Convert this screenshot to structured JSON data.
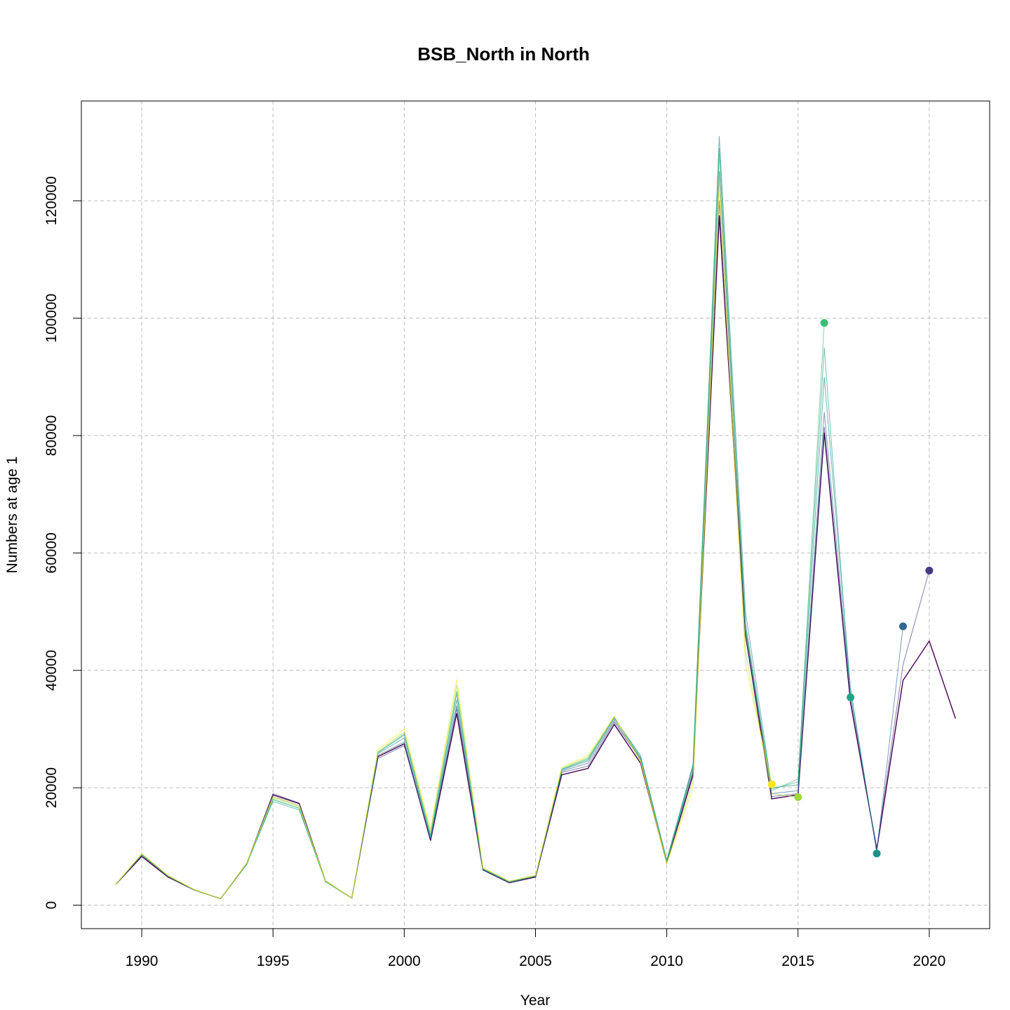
{
  "chart_data": {
    "type": "line",
    "title": "BSB_North in North",
    "xlabel": "Year",
    "ylabel": "Numbers at age 1",
    "xlim": [
      1987.7,
      2022.3
    ],
    "ylim": [
      -4000,
      137000
    ],
    "x_ticks": [
      1990,
      1995,
      2000,
      2005,
      2010,
      2015,
      2020
    ],
    "y_ticks": [
      0,
      20000,
      40000,
      60000,
      80000,
      100000,
      120000
    ],
    "grid": true,
    "legend": "none",
    "series": [
      {
        "color": "#440154",
        "x": [
          1989,
          1990,
          1991,
          1992,
          1993,
          1994,
          1995,
          1996,
          1997,
          1998,
          1999,
          2000,
          2001,
          2002,
          2003,
          2004,
          2005,
          2006,
          2007,
          2008,
          2009,
          2010,
          2011,
          2012,
          2013,
          2014,
          2015,
          2016,
          2017,
          2018,
          2019,
          2020,
          2021
        ],
        "values": [
          3500,
          8300,
          4800,
          2600,
          1100,
          7000,
          18800,
          17300,
          4100,
          1200,
          25300,
          27500,
          11000,
          32700,
          6000,
          3800,
          4800,
          22200,
          23300,
          30800,
          24200,
          7200,
          22200,
          117500,
          46000,
          18100,
          18800,
          80500,
          34500,
          9500,
          38300,
          45000,
          31800
        ],
        "endpoint": null
      },
      {
        "color": "#443A83",
        "x": [
          1989,
          1990,
          1991,
          1992,
          1993,
          1994,
          1995,
          1996,
          1997,
          1998,
          1999,
          2000,
          2001,
          2002,
          2003,
          2004,
          2005,
          2006,
          2007,
          2008,
          2009,
          2010,
          2011,
          2012,
          2013,
          2014,
          2015,
          2016,
          2017,
          2018,
          2019,
          2020
        ],
        "values": [
          3500,
          8500,
          4900,
          2600,
          1100,
          7200,
          19000,
          17400,
          4100,
          1200,
          25000,
          27200,
          11200,
          33500,
          6000,
          3800,
          4900,
          22600,
          23700,
          31200,
          24800,
          7300,
          22700,
          120000,
          47000,
          18500,
          19000,
          81500,
          35000,
          9700,
          41000,
          57000
        ],
        "endpoint": 57000
      },
      {
        "color": "#31688E",
        "x": [
          1989,
          1990,
          1991,
          1992,
          1993,
          1994,
          1995,
          1996,
          1997,
          1998,
          1999,
          2000,
          2001,
          2002,
          2003,
          2004,
          2005,
          2006,
          2007,
          2008,
          2009,
          2010,
          2011,
          2012,
          2013,
          2014,
          2015,
          2016,
          2017,
          2018,
          2019
        ],
        "values": [
          3500,
          8600,
          4900,
          2600,
          1100,
          7100,
          18500,
          17000,
          4100,
          1200,
          25500,
          27800,
          11300,
          34000,
          6100,
          3900,
          4900,
          22800,
          24200,
          31500,
          25000,
          7500,
          23500,
          125000,
          48000,
          19000,
          19500,
          84000,
          36000,
          9200,
          47500
        ],
        "endpoint": 47500
      },
      {
        "color": "#21908C",
        "x": [
          1989,
          1990,
          1991,
          1992,
          1993,
          1994,
          1995,
          1996,
          1997,
          1998,
          1999,
          2000,
          2001,
          2002,
          2003,
          2004,
          2005,
          2006,
          2007,
          2008,
          2009,
          2010,
          2011,
          2012,
          2013,
          2014,
          2015,
          2016,
          2017,
          2018
        ],
        "values": [
          3500,
          8700,
          5000,
          2600,
          1100,
          7000,
          18000,
          16500,
          4000,
          1200,
          25800,
          28500,
          11500,
          35000,
          6100,
          4000,
          5000,
          23000,
          24600,
          31800,
          25500,
          7700,
          24000,
          131000,
          50000,
          20000,
          20500,
          90000,
          37000,
          8800
        ],
        "endpoint": 8800
      },
      {
        "color": "#20A486",
        "x": [
          1989,
          1990,
          1991,
          1992,
          1993,
          1994,
          1995,
          1996,
          1997,
          1998,
          1999,
          2000,
          2001,
          2002,
          2003,
          2004,
          2005,
          2006,
          2007,
          2008,
          2009,
          2010,
          2011,
          2012,
          2013,
          2014,
          2015,
          2016,
          2017
        ],
        "values": [
          3500,
          8700,
          5000,
          2600,
          1100,
          7000,
          17700,
          16200,
          4000,
          1200,
          26000,
          29000,
          11800,
          36000,
          6200,
          4000,
          5000,
          23100,
          24800,
          32000,
          25200,
          7600,
          23800,
          129000,
          47000,
          19800,
          21000,
          95000,
          35400
        ],
        "endpoint": 35400
      },
      {
        "color": "#3DBC74",
        "x": [
          1989,
          1990,
          1991,
          1992,
          1993,
          1994,
          1995,
          1996,
          1997,
          1998,
          1999,
          2000,
          2001,
          2002,
          2003,
          2004,
          2005,
          2006,
          2007,
          2008,
          2009,
          2010,
          2011,
          2012,
          2013,
          2014,
          2015,
          2016
        ],
        "values": [
          3500,
          8600,
          5000,
          2600,
          1100,
          7000,
          18000,
          16500,
          4000,
          1200,
          26000,
          29200,
          12000,
          36500,
          6200,
          4000,
          5000,
          23200,
          25000,
          32000,
          25000,
          7500,
          23000,
          128000,
          46500,
          19500,
          21500,
          99200
        ],
        "endpoint": 99200
      },
      {
        "color": "#A0DA39",
        "x": [
          1989,
          1990,
          1991,
          1992,
          1993,
          1994,
          1995,
          1996,
          1997,
          1998,
          1999,
          2000,
          2001,
          2002,
          2003,
          2004,
          2005,
          2006,
          2007,
          2008,
          2009,
          2010,
          2011,
          2012,
          2013,
          2014,
          2015
        ],
        "values": [
          3500,
          8700,
          5000,
          2600,
          1100,
          7100,
          18300,
          16800,
          4100,
          1200,
          26200,
          29500,
          12500,
          37500,
          6300,
          4100,
          5000,
          23300,
          25200,
          32100,
          24600,
          7200,
          21000,
          124000,
          43000,
          19000,
          18400
        ],
        "endpoint": 18400
      },
      {
        "color": "#FDE725",
        "x": [
          1989,
          1990,
          1991,
          1992,
          1993,
          1994,
          1995,
          1996,
          1997,
          1998,
          1999,
          2000,
          2001,
          2002,
          2003,
          2004,
          2005,
          2006,
          2007,
          2008,
          2009,
          2010,
          2011,
          2012,
          2013,
          2014
        ],
        "values": [
          3500,
          8800,
          5100,
          2700,
          1100,
          7200,
          18500,
          17000,
          4200,
          1200,
          26500,
          30000,
          13000,
          38500,
          6400,
          4100,
          5100,
          23500,
          25500,
          32200,
          24400,
          7000,
          20000,
          122000,
          41000,
          20600
        ],
        "endpoint": 20600
      }
    ]
  }
}
